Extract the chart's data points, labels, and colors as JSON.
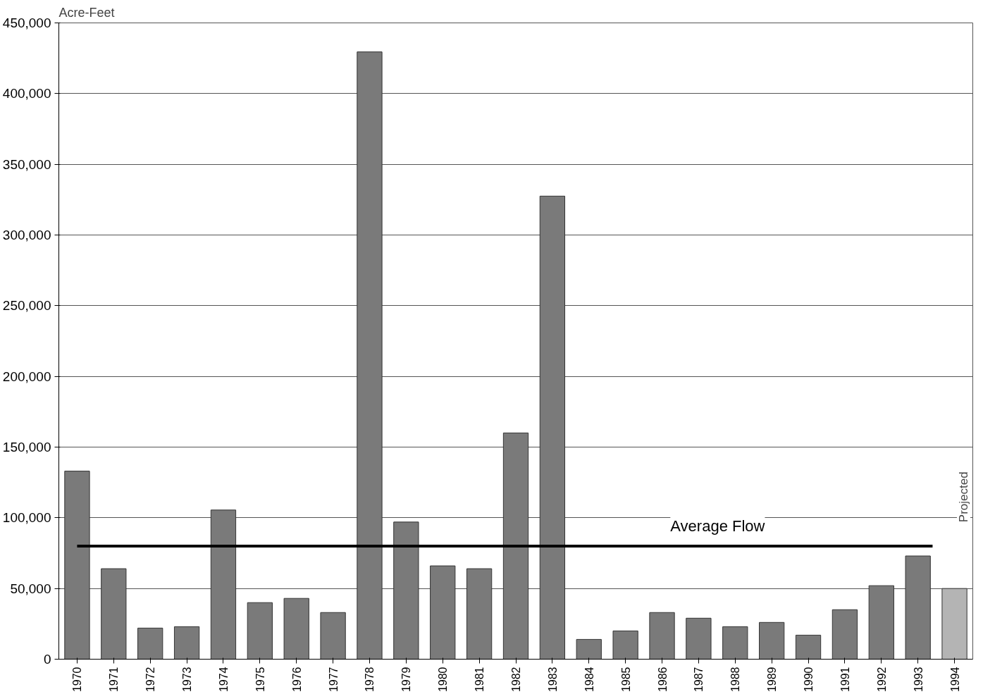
{
  "chart_data": {
    "type": "bar",
    "ylabel": "Acre-Feet",
    "categories": [
      "1970",
      "1971",
      "1972",
      "1973",
      "1974",
      "1975",
      "1976",
      "1977",
      "1978",
      "1979",
      "1980",
      "1981",
      "1982",
      "1983",
      "1984",
      "1985",
      "1986",
      "1987",
      "1988",
      "1989",
      "1990",
      "1991",
      "1992",
      "1993",
      "1994"
    ],
    "values": [
      133000,
      64000,
      22000,
      23000,
      105500,
      40000,
      43000,
      33000,
      429500,
      97000,
      66000,
      64000,
      160000,
      327500,
      14000,
      20000,
      33000,
      29000,
      23000,
      26000,
      17000,
      35000,
      52000,
      73000,
      50000
    ],
    "colors": [
      "#7a7a7a",
      "#7a7a7a",
      "#7a7a7a",
      "#7a7a7a",
      "#7a7a7a",
      "#7a7a7a",
      "#7a7a7a",
      "#7a7a7a",
      "#7a7a7a",
      "#7a7a7a",
      "#7a7a7a",
      "#7a7a7a",
      "#7a7a7a",
      "#7a7a7a",
      "#7a7a7a",
      "#7a7a7a",
      "#7a7a7a",
      "#7a7a7a",
      "#7a7a7a",
      "#7a7a7a",
      "#7a7a7a",
      "#7a7a7a",
      "#7a7a7a",
      "#7a7a7a",
      "#b4b4b4"
    ],
    "ylim": [
      0,
      450000
    ],
    "yticks": [
      {
        "value": 0,
        "label": "0"
      },
      {
        "value": 50000,
        "label": "50,000"
      },
      {
        "value": 100000,
        "label": "100,000"
      },
      {
        "value": 150000,
        "label": "150,000"
      },
      {
        "value": 200000,
        "label": "200,000"
      },
      {
        "value": 250000,
        "label": "250,000"
      },
      {
        "value": 300000,
        "label": "300,000"
      },
      {
        "value": 350000,
        "label": "350,000"
      },
      {
        "value": 400000,
        "label": "400,000"
      },
      {
        "value": 450000,
        "label": "450,000"
      }
    ],
    "grid": "y",
    "ref_lines": [
      {
        "axis": "y",
        "value": 80000,
        "label": "Average Flow",
        "color": "#000000"
      }
    ],
    "annotations": [
      "Projected"
    ]
  }
}
